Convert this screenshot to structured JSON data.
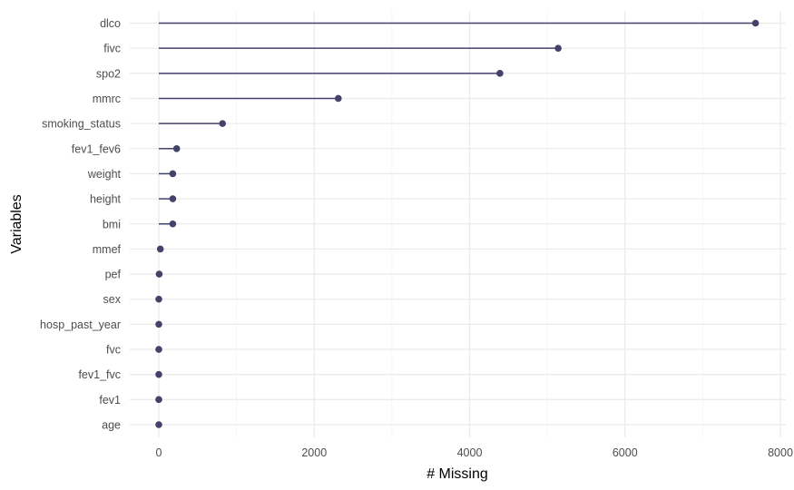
{
  "chart_data": {
    "type": "lollipop",
    "title": "",
    "xlabel": "# Missing",
    "ylabel": "Variables",
    "xlim": [
      -150,
      8000
    ],
    "x_ticks": [
      0,
      2000,
      4000,
      6000,
      8000
    ],
    "x_tick_labels": [
      "0",
      "2000",
      "4000",
      "6000",
      "8000"
    ],
    "grid": true,
    "categories": [
      "dlco",
      "fivc",
      "spo2",
      "mmrc",
      "smoking_status",
      "fev1_fev6",
      "weight",
      "height",
      "bmi",
      "mmef",
      "pef",
      "sex",
      "hosp_past_year",
      "fvc",
      "fev1_fvc",
      "fev1",
      "age"
    ],
    "values": [
      7680,
      5140,
      4390,
      2310,
      820,
      230,
      180,
      180,
      180,
      20,
      5,
      0,
      0,
      0,
      0,
      0,
      0
    ],
    "colors": {
      "mark": "#43426b",
      "grid_major": "#ebebeb",
      "grid_minor": "#f3f3f3"
    }
  }
}
